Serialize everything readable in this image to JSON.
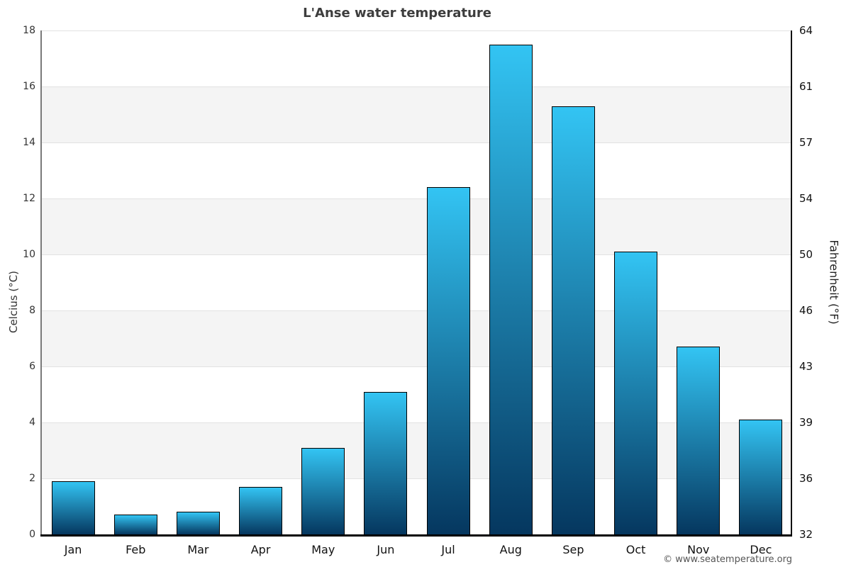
{
  "chart_data": {
    "type": "bar",
    "title": "L'Anse water temperature",
    "categories": [
      "Jan",
      "Feb",
      "Mar",
      "Apr",
      "May",
      "Jun",
      "Jul",
      "Aug",
      "Sep",
      "Oct",
      "Nov",
      "Dec"
    ],
    "values": [
      1.9,
      0.7,
      0.8,
      1.7,
      3.1,
      5.1,
      12.4,
      17.5,
      15.3,
      10.1,
      6.7,
      4.1
    ],
    "unit": "°C",
    "ylabel_left": "Celcius (°C)",
    "ylabel_right": "Fahrenheit (°F)",
    "yticks_left": [
      0,
      2,
      4,
      6,
      8,
      10,
      12,
      14,
      16,
      18
    ],
    "yticks_right": [
      32,
      36,
      39,
      43,
      46,
      50,
      54,
      57,
      61,
      64
    ],
    "ylim": [
      0,
      18
    ],
    "grid": "horizontal alternating bands every 2°C",
    "legend": "none",
    "colors": {
      "bar_gradient_top": "#33c4f3",
      "bar_gradient_bottom": "#05375f",
      "bar_border": "#000000",
      "band_fill": "#f4f4f4",
      "gridline": "#e2e2e2",
      "axis_left": "#7a7a7a",
      "axis_right": "#111111",
      "axis_bottom": "#000000",
      "title_text": "#3d3d3d"
    }
  },
  "footer": {
    "copyright": "© www.seatemperature.org"
  }
}
